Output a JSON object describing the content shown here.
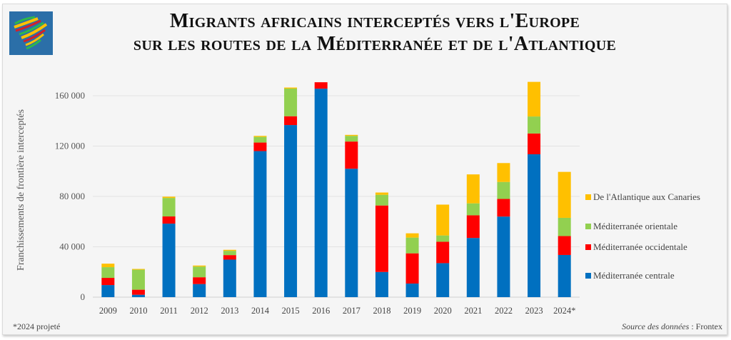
{
  "title_line1": "Migrants africains interceptés vers l'Europe",
  "title_line2": "sur les routes de la Méditerranée et de l'Atlantique",
  "footnote": "*2024 projeté",
  "source_label": "Source des données",
  "source_sep": " : ",
  "source_value": "Frontex",
  "logo": "africa-stripes-logo",
  "chart_data": {
    "type": "bar",
    "stacked": true,
    "title": "Migrants africains interceptés vers l'Europe sur les routes de la Méditerranée et de l'Atlantique",
    "xlabel": "",
    "ylabel": "Franchissements de frontière interceptés",
    "ylim": [
      0,
      170000
    ],
    "yticks": [
      0,
      40000,
      80000,
      120000,
      160000
    ],
    "ytick_labels": [
      "0",
      "40 000",
      "80 000",
      "120 000",
      "160 000"
    ],
    "grid": true,
    "legend_position": "right",
    "categories": [
      "2009",
      "2010",
      "2011",
      "2012",
      "2013",
      "2014",
      "2015",
      "2016",
      "2017",
      "2018",
      "2019",
      "2020",
      "2021",
      "2022",
      "2023",
      "2024*"
    ],
    "series": [
      {
        "name": "Méditerranée centrale",
        "color": "#0070c0",
        "values": [
          9600,
          1900,
          58400,
          10400,
          29800,
          116000,
          136700,
          165600,
          102000,
          20000,
          10800,
          27000,
          47000,
          64000,
          113500,
          33500
        ]
      },
      {
        "name": "Méditerranée occidentale",
        "color": "#ff0000",
        "values": [
          5700,
          4000,
          5700,
          5400,
          3600,
          6800,
          7000,
          5100,
          21600,
          52800,
          24000,
          17000,
          18000,
          14000,
          16500,
          15000
        ]
      },
      {
        "name": "Méditerranée orientale",
        "color": "#92d050",
        "values": [
          8500,
          15900,
          14700,
          8500,
          3400,
          4500,
          22000,
          0,
          4500,
          8500,
          12500,
          5000,
          9500,
          13500,
          13500,
          14500
        ]
      },
      {
        "name": "De l'Atlantique aux Canaries",
        "color": "#ffc000",
        "values": [
          2800,
          600,
          1000,
          800,
          800,
          800,
          800,
          0,
          800,
          1800,
          3400,
          24500,
          23000,
          15000,
          27500,
          36500
        ]
      }
    ],
    "legend_order": [
      "De l'Atlantique aux Canaries",
      "Méditerranée orientale",
      "Méditerranée occidentale",
      "Méditerranée centrale"
    ],
    "footnote": "*2024 projeté",
    "source": "Source des données : Frontex"
  }
}
